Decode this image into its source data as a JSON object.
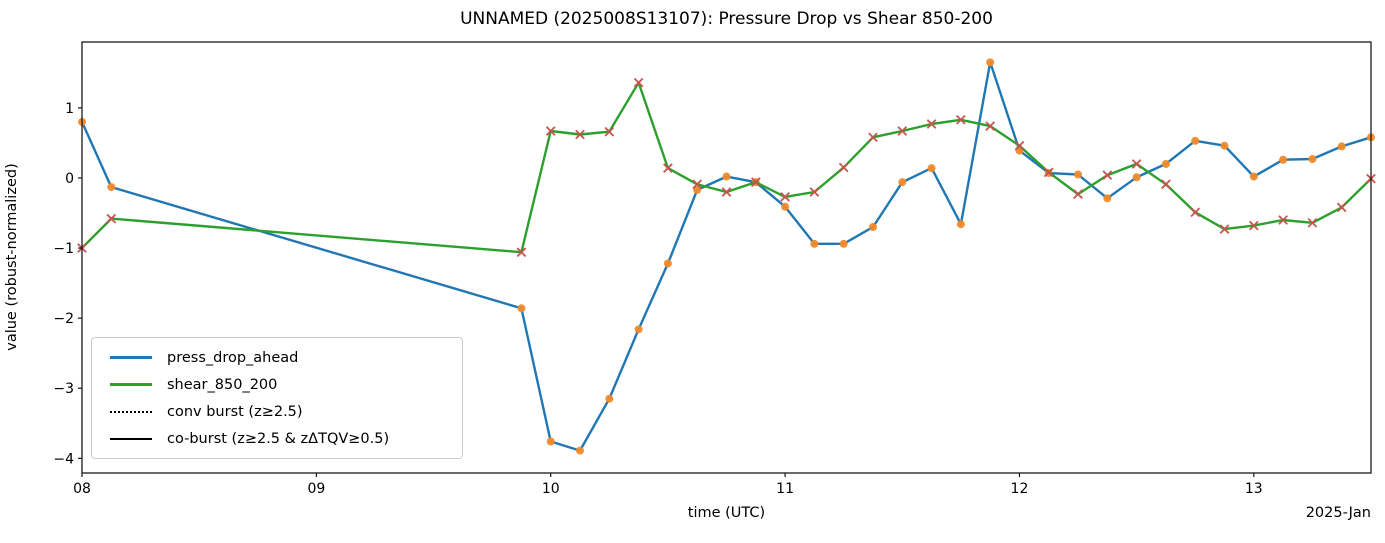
{
  "chart_data": {
    "type": "line",
    "title": "UNNAMED (2025008S13107): Pressure Drop vs Shear 850-200",
    "xlabel": "time (UTC)",
    "ylabel": "value (robust-normalized)",
    "x_offset_label": "2025-Jan",
    "grid": false,
    "legend_position": "lower-left",
    "xlim": [
      8.0,
      13.5
    ],
    "ylim": [
      -4.21,
      1.94
    ],
    "x_unit": "day of January 2025 (UTC)",
    "x": [
      8.0,
      8.125,
      9.875,
      10.0,
      10.125,
      10.25,
      10.375,
      10.5,
      10.625,
      10.75,
      10.875,
      11.0,
      11.125,
      11.25,
      11.375,
      11.5,
      11.625,
      11.75,
      11.875,
      12.0,
      12.125,
      12.25,
      12.375,
      12.5,
      12.625,
      12.75,
      12.875,
      13.0,
      13.125,
      13.25,
      13.375,
      13.5
    ],
    "series": [
      {
        "name": "press_drop_ahead",
        "color": "#1f77b4",
        "marker": "dot",
        "marker_color": "#f08a2b",
        "values": [
          0.8,
          -0.13,
          -1.86,
          -3.76,
          -3.89,
          -3.15,
          -2.16,
          -1.22,
          -0.17,
          0.02,
          -0.06,
          -0.41,
          -0.94,
          -0.94,
          -0.7,
          -0.06,
          0.14,
          -0.66,
          1.65,
          0.39,
          0.07,
          0.05,
          -0.29,
          0.01,
          0.2,
          0.53,
          0.46,
          0.02,
          0.26,
          0.27,
          0.45,
          0.58
        ]
      },
      {
        "name": "shear_850_200",
        "color": "#2ca02c",
        "marker": "x",
        "marker_color": "#c5524e",
        "values": [
          -1.0,
          -0.58,
          -1.06,
          0.67,
          0.62,
          0.66,
          1.36,
          0.14,
          -0.09,
          -0.2,
          -0.06,
          -0.27,
          -0.2,
          0.15,
          0.58,
          0.67,
          0.77,
          0.83,
          0.74,
          0.46,
          0.08,
          -0.23,
          0.04,
          0.2,
          -0.09,
          -0.49,
          -0.73,
          -0.68,
          -0.6,
          -0.64,
          -0.42,
          -0.01
        ]
      }
    ],
    "x_ticks": [
      {
        "value": 8.0,
        "label": "08"
      },
      {
        "value": 9.0,
        "label": "09"
      },
      {
        "value": 10.0,
        "label": "10"
      },
      {
        "value": 11.0,
        "label": "11"
      },
      {
        "value": 12.0,
        "label": "12"
      },
      {
        "value": 13.0,
        "label": "13"
      }
    ],
    "y_ticks": [
      {
        "value": 1,
        "label": "1"
      },
      {
        "value": 0,
        "label": "0"
      },
      {
        "value": -1,
        "label": "−1"
      },
      {
        "value": -2,
        "label": "−2"
      },
      {
        "value": -3,
        "label": "−3"
      },
      {
        "value": -4,
        "label": "−4"
      }
    ],
    "legend": [
      {
        "label": "press_drop_ahead",
        "style": "solid-blue"
      },
      {
        "label": "shear_850_200",
        "style": "solid-green"
      },
      {
        "label": "conv burst (z≥2.5)",
        "style": "dotted-black"
      },
      {
        "label": "co-burst (z≥2.5 & zΔTQV≥0.5)",
        "style": "solid-black"
      }
    ]
  }
}
